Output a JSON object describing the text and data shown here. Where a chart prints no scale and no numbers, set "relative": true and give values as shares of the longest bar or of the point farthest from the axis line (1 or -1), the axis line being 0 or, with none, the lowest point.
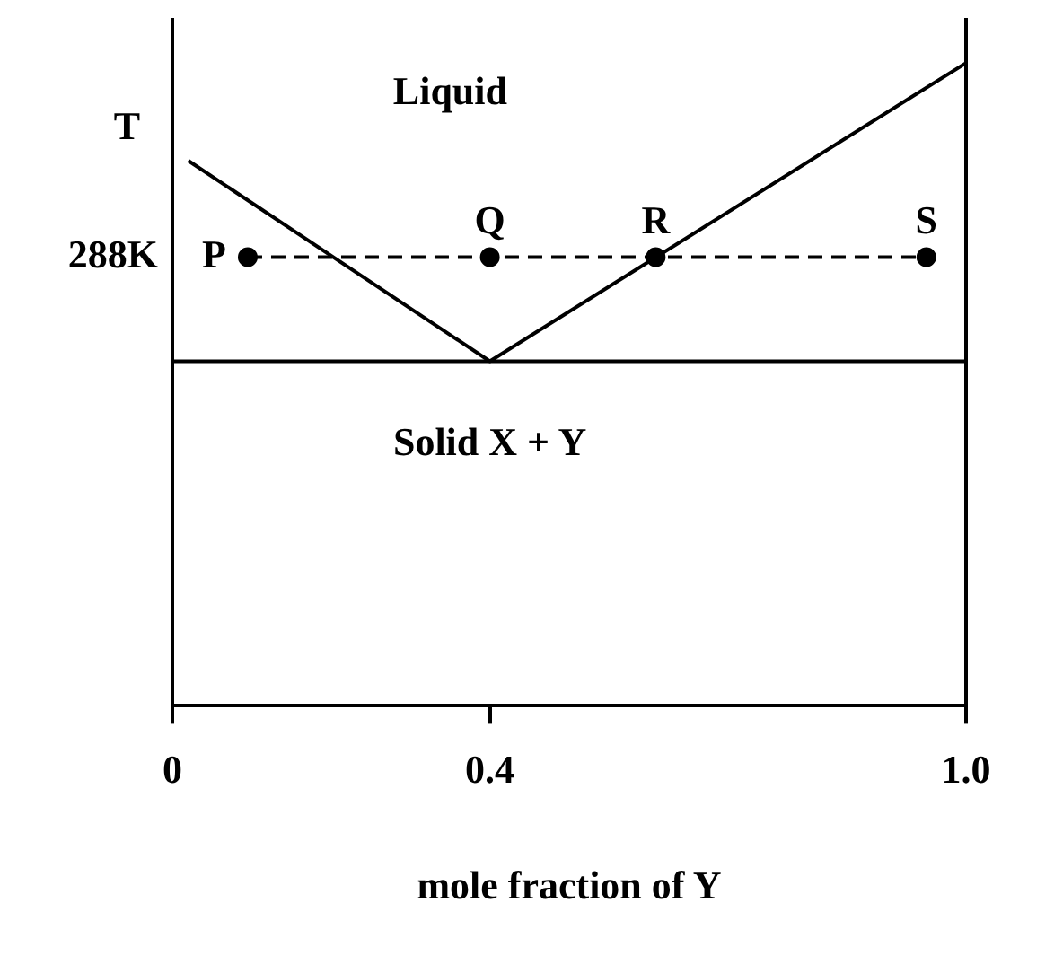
{
  "chart_data": {
    "type": "line",
    "relative": true,
    "xlabel": "mole fraction of Y",
    "ylabel": "T",
    "xlim": [
      0,
      1
    ],
    "xticks": [
      0,
      0.4,
      {
        "value": 1,
        "label": "1.0"
      }
    ],
    "grid": false,
    "legend": false,
    "series": [
      {
        "color": "#000000",
        "x": [
          0.02,
          0.4,
          1.0
        ],
        "values": [
          0.848,
          0.536,
          1.0
        ],
        "marker": "none",
        "line_style": "solid"
      },
      {
        "color": "#000000",
        "x": [
          0,
          1
        ],
        "values": [
          0.536,
          0.536
        ],
        "marker": "none",
        "line_style": "solid"
      },
      {
        "color": "#000000",
        "x": [
          0.095,
          0.4,
          0.609,
          0.95
        ],
        "values": [
          0.698,
          0.698,
          0.698,
          0.698
        ],
        "marker": "circle",
        "line_style": "dashed"
      }
    ],
    "annotations": [
      "Liquid",
      "Solid X + Y",
      "288K",
      {
        "text": "P",
        "x": 0.095,
        "y": 0.698
      },
      {
        "text": "Q",
        "x": 0.4,
        "y": 0.698
      },
      {
        "text": "R",
        "x": 0.609,
        "y": 0.698
      },
      {
        "text": "S",
        "x": 0.95,
        "y": 0.698
      }
    ]
  }
}
